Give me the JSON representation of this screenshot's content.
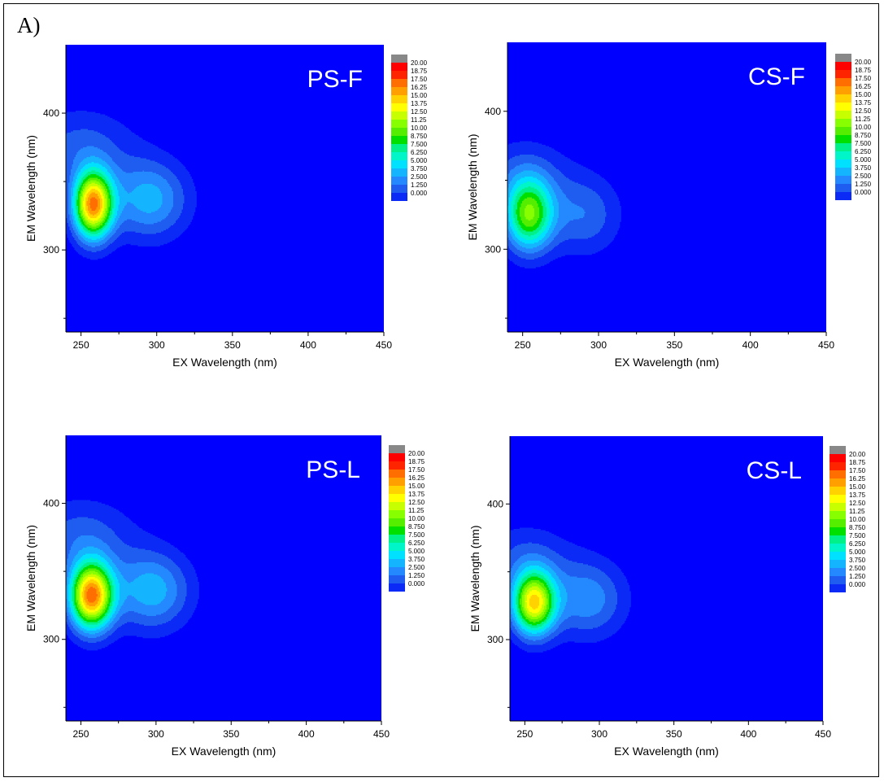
{
  "figure": {
    "panel_label": "A)"
  },
  "chart_data": [
    {
      "type": "heatmap",
      "title": "PS-F",
      "xlabel": "EX Wavelength (nm)",
      "ylabel": "EM Wavelength (nm)",
      "xlim": [
        240,
        450
      ],
      "ylim": [
        240,
        450
      ],
      "x_ticks": [
        "250",
        "300",
        "350",
        "400",
        "450"
      ],
      "y_ticks": [
        "300",
        "400"
      ],
      "legend_levels": [
        "20.00",
        "18.75",
        "17.50",
        "16.25",
        "15.00",
        "13.75",
        "12.50",
        "11.25",
        "10.00",
        "8.750",
        "7.500",
        "6.250",
        "5.000",
        "3.750",
        "2.500",
        "1.250",
        "0.000"
      ],
      "peaks": [
        {
          "ex": 258,
          "em": 333,
          "amp": 18.5,
          "sx": 9,
          "sy": 17
        },
        {
          "ex": 295,
          "em": 337,
          "amp": 5.6,
          "sx": 18,
          "sy": 20
        },
        {
          "ex": 250,
          "em": 375,
          "amp": 3.0,
          "sx": 25,
          "sy": 20
        }
      ]
    },
    {
      "type": "heatmap",
      "title": "CS-F",
      "xlabel": "EX Wavelength (nm)",
      "ylabel": "EM Wavelength (nm)",
      "xlim": [
        240,
        450
      ],
      "ylim": [
        240,
        450
      ],
      "x_ticks": [
        "250",
        "300",
        "350",
        "400",
        "450"
      ],
      "y_ticks": [
        "300",
        "400"
      ],
      "legend_levels": [
        "20.00",
        "18.75",
        "17.50",
        "16.25",
        "15.00",
        "13.75",
        "12.50",
        "11.25",
        "10.00",
        "8.750",
        "7.500",
        "6.250",
        "5.000",
        "3.750",
        "2.500",
        "1.250",
        "0.000"
      ],
      "peaks": [
        {
          "ex": 254,
          "em": 325,
          "amp": 12.0,
          "sx": 11,
          "sy": 18
        },
        {
          "ex": 290,
          "em": 325,
          "amp": 3.6,
          "sx": 17,
          "sy": 20
        },
        {
          "ex": 250,
          "em": 355,
          "amp": 2.5,
          "sx": 22,
          "sy": 18
        }
      ]
    },
    {
      "type": "heatmap",
      "title": "PS-L",
      "xlabel": "EX Wavelength (nm)",
      "ylabel": "EM Wavelength (nm)",
      "xlim": [
        240,
        450
      ],
      "ylim": [
        240,
        450
      ],
      "x_ticks": [
        "250",
        "300",
        "350",
        "400",
        "450"
      ],
      "y_ticks": [
        "300",
        "400"
      ],
      "legend_levels": [
        "20.00",
        "18.75",
        "17.50",
        "16.25",
        "15.00",
        "13.75",
        "12.50",
        "11.25",
        "10.00",
        "8.750",
        "7.500",
        "6.250",
        "5.000",
        "3.750",
        "2.500",
        "1.250",
        "0.000"
      ],
      "peaks": [
        {
          "ex": 257,
          "em": 332,
          "amp": 19.0,
          "sx": 10,
          "sy": 17
        },
        {
          "ex": 297,
          "em": 336,
          "amp": 5.8,
          "sx": 18,
          "sy": 20
        },
        {
          "ex": 250,
          "em": 375,
          "amp": 3.2,
          "sx": 25,
          "sy": 20
        }
      ]
    },
    {
      "type": "heatmap",
      "title": "CS-L",
      "xlabel": "EX Wavelength (nm)",
      "ylabel": "EM Wavelength (nm)",
      "xlim": [
        240,
        450
      ],
      "ylim": [
        240,
        450
      ],
      "x_ticks": [
        "250",
        "300",
        "350",
        "400",
        "450"
      ],
      "y_ticks": [
        "300",
        "400"
      ],
      "legend_levels": [
        "20.00",
        "18.75",
        "17.50",
        "16.25",
        "15.00",
        "13.75",
        "12.50",
        "11.25",
        "10.00",
        "8.750",
        "7.500",
        "6.250",
        "5.000",
        "3.750",
        "2.500",
        "1.250",
        "0.000"
      ],
      "peaks": [
        {
          "ex": 256,
          "em": 327,
          "amp": 16.0,
          "sx": 10,
          "sy": 16
        },
        {
          "ex": 292,
          "em": 330,
          "amp": 4.6,
          "sx": 18,
          "sy": 20
        },
        {
          "ex": 250,
          "em": 360,
          "amp": 2.6,
          "sx": 22,
          "sy": 18
        }
      ]
    }
  ],
  "colors": {
    "background_level": "#0000ff",
    "levels": [
      "#0000ff",
      "#0b2af5",
      "#1f5cf0",
      "#2489ff",
      "#14b4ff",
      "#00e0ff",
      "#00f5c8",
      "#00f08a",
      "#00e000",
      "#55ee00",
      "#88ff00",
      "#c8ff00",
      "#ffff00",
      "#ffd200",
      "#ffa000",
      "#ff6e00",
      "#ff2400",
      "#ff0000"
    ],
    "over": "#888888"
  }
}
